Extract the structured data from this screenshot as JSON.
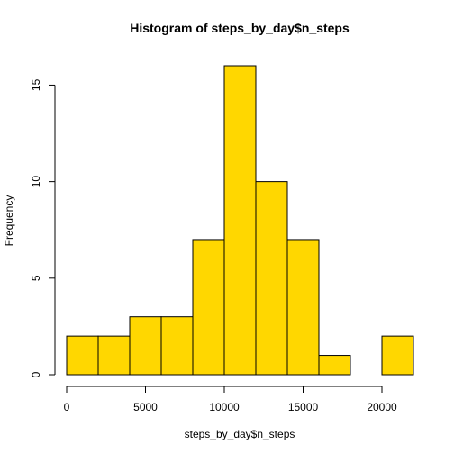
{
  "chart_data": {
    "type": "bar",
    "title": "Histogram of steps_by_day$n_steps",
    "xlabel": "steps_by_day$n_steps",
    "ylabel": "Frequency",
    "bins": [
      {
        "start": 0,
        "end": 2000,
        "count": 2
      },
      {
        "start": 2000,
        "end": 4000,
        "count": 2
      },
      {
        "start": 4000,
        "end": 6000,
        "count": 3
      },
      {
        "start": 6000,
        "end": 8000,
        "count": 3
      },
      {
        "start": 8000,
        "end": 10000,
        "count": 7
      },
      {
        "start": 10000,
        "end": 12000,
        "count": 16
      },
      {
        "start": 12000,
        "end": 14000,
        "count": 10
      },
      {
        "start": 14000,
        "end": 16000,
        "count": 7
      },
      {
        "start": 16000,
        "end": 18000,
        "count": 1
      },
      {
        "start": 18000,
        "end": 20000,
        "count": 0
      },
      {
        "start": 20000,
        "end": 22000,
        "count": 2
      }
    ],
    "xlim": [
      0,
      22000
    ],
    "ylim": [
      0,
      16
    ],
    "xticks": [
      0,
      5000,
      10000,
      15000,
      20000
    ],
    "xtick_labels": [
      "0",
      "5000",
      "10000",
      "15000",
      "20000"
    ],
    "yticks": [
      0,
      5,
      10,
      15
    ],
    "ytick_labels": [
      "0",
      "5",
      "10",
      "15"
    ],
    "bar_color": "#FFD700",
    "grid": false,
    "legend": "none"
  }
}
